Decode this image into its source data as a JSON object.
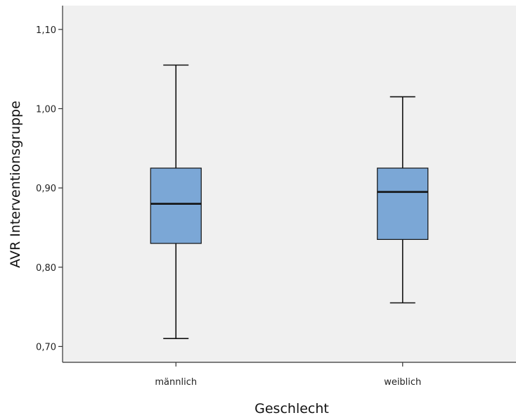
{
  "chart_data": {
    "type": "boxplot",
    "title": "",
    "xlabel": "Geschlecht",
    "ylabel": "AVR Interventionsgruppe",
    "ylim": [
      0.68,
      1.13
    ],
    "y_ticks": [
      0.7,
      0.8,
      0.9,
      1.0,
      1.1
    ],
    "y_tick_labels": [
      "0,70",
      "0,80",
      "0,90",
      "1,00",
      "1,10"
    ],
    "grid": false,
    "categories": [
      "männlich",
      "weiblich"
    ],
    "boxes": [
      {
        "category": "männlich",
        "min": 0.71,
        "q1": 0.83,
        "median": 0.88,
        "q3": 0.925,
        "max": 1.055
      },
      {
        "category": "weiblich",
        "min": 0.755,
        "q1": 0.835,
        "median": 0.895,
        "q3": 0.925,
        "max": 1.015
      }
    ],
    "colors": {
      "box_fill": "#7ba7d6",
      "plot_background": "#f0f0f0",
      "line": "#111111"
    }
  }
}
